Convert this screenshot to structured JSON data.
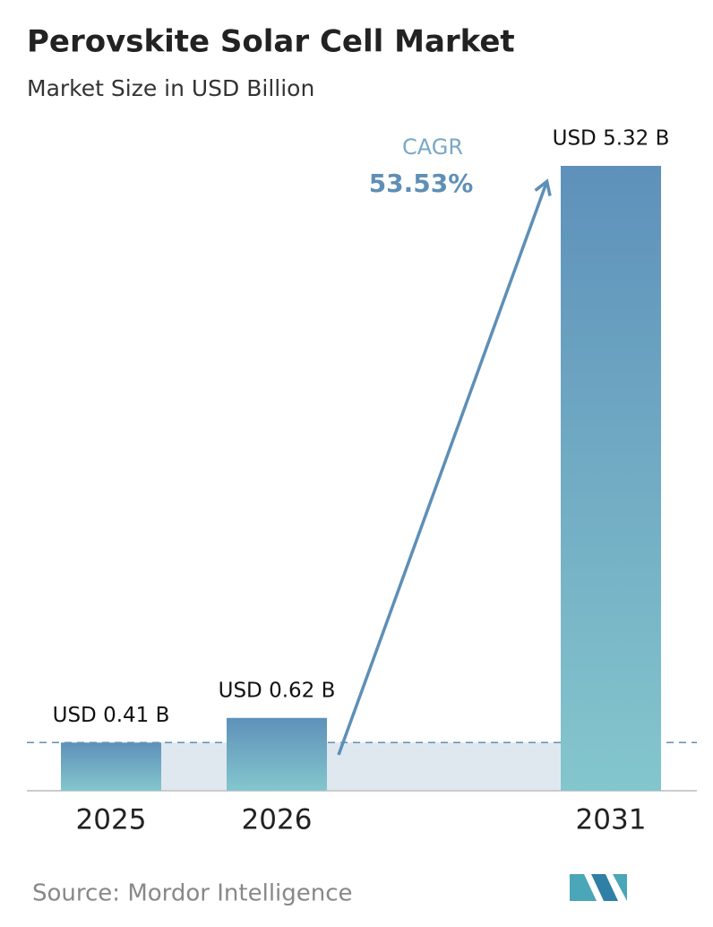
{
  "chart_data": {
    "type": "bar",
    "title": "Perovskite Solar Cell Market",
    "subtitle": "Market Size in USD Billion",
    "categories": [
      "2025",
      "2026",
      "2031"
    ],
    "values": [
      0.41,
      0.62,
      5.32
    ],
    "value_labels": [
      "USD 0.41 B",
      "USD 0.62 B",
      "USD 5.32 B"
    ],
    "annotation": {
      "label": "CAGR",
      "value": "53.53%"
    },
    "source": "Source: Mordor Intelligence"
  }
}
